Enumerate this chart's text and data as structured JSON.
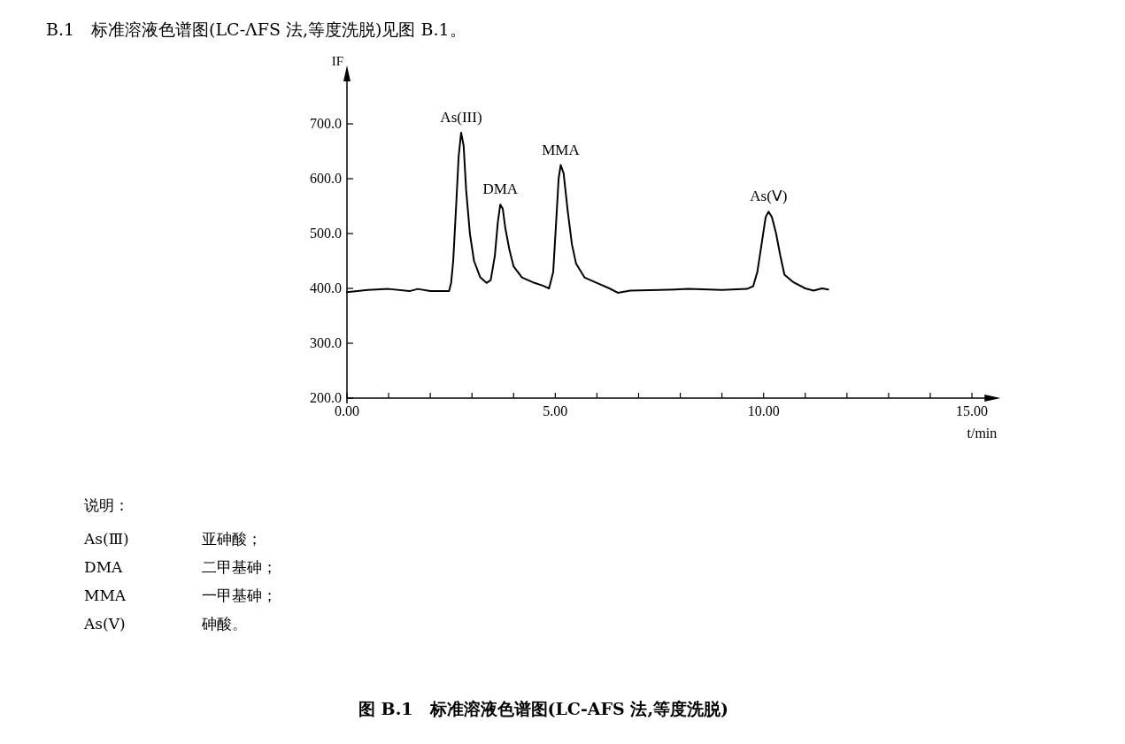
{
  "chart_data": {
    "type": "line",
    "subtitle": "B.1　标准溶液色谱图(LC-ΛFS 法,等度洗脱)见图 B.1。",
    "title": "图 B.1　标准溶液色谱图(LC-AFS 法,等度洗脱)",
    "xlabel": "t/min",
    "ylabel": "IF",
    "xlim": [
      0,
      15.6
    ],
    "ylim": [
      200,
      800
    ],
    "xticks": [
      {
        "value": 0,
        "label": "0.00"
      },
      {
        "value": 1,
        "label": null
      },
      {
        "value": 2,
        "label": null
      },
      {
        "value": 3,
        "label": null
      },
      {
        "value": 4,
        "label": null
      },
      {
        "value": 5,
        "label": "5.00"
      },
      {
        "value": 6,
        "label": null
      },
      {
        "value": 7,
        "label": null
      },
      {
        "value": 8,
        "label": null
      },
      {
        "value": 9,
        "label": null
      },
      {
        "value": 10,
        "label": "10.00"
      },
      {
        "value": 11,
        "label": null
      },
      {
        "value": 12,
        "label": null
      },
      {
        "value": 13,
        "label": null
      },
      {
        "value": 14,
        "label": null
      },
      {
        "value": 15,
        "label": "15.00"
      }
    ],
    "yticks": [
      {
        "value": 200,
        "label": "200.0"
      },
      {
        "value": 300,
        "label": "300.0"
      },
      {
        "value": 400,
        "label": "400.0"
      },
      {
        "value": 500,
        "label": "500.0"
      },
      {
        "value": 600,
        "label": "600.0"
      },
      {
        "value": 700,
        "label": "700.0"
      }
    ],
    "grid": false,
    "series": [
      {
        "color": "#000000",
        "x": [
          0,
          0.5,
          1.0,
          1.5,
          1.7,
          2.0,
          2.45,
          2.5,
          2.55,
          2.62,
          2.68,
          2.74,
          2.8,
          2.86,
          2.95,
          3.05,
          3.2,
          3.35,
          3.45,
          3.55,
          3.62,
          3.68,
          3.74,
          3.8,
          3.9,
          4.0,
          4.2,
          4.5,
          4.7,
          4.85,
          4.95,
          5.02,
          5.08,
          5.13,
          5.2,
          5.3,
          5.4,
          5.5,
          5.7,
          6.0,
          6.3,
          6.5,
          6.8,
          7.5,
          8.2,
          9.0,
          9.6,
          9.75,
          9.85,
          9.95,
          10.05,
          10.12,
          10.2,
          10.3,
          10.4,
          10.5,
          10.7,
          11.0,
          11.2,
          11.4,
          11.55
        ],
        "values": [
          393,
          397,
          399,
          395,
          399,
          395,
          395,
          410,
          450,
          550,
          640,
          684,
          660,
          580,
          500,
          450,
          420,
          410,
          415,
          460,
          520,
          553,
          545,
          510,
          470,
          440,
          420,
          410,
          405,
          400,
          430,
          520,
          600,
          625,
          610,
          540,
          480,
          445,
          420,
          410,
          400,
          392,
          396,
          397,
          399,
          397,
          399,
          404,
          430,
          480,
          530,
          540,
          530,
          500,
          460,
          425,
          412,
          400,
          396,
          400,
          398
        ]
      }
    ],
    "annotations": [
      {
        "text": "As(III)",
        "x": 2.74,
        "y": 684
      },
      {
        "text": "DMA",
        "x": 3.68,
        "y": 553
      },
      {
        "text": "MMA",
        "x": 5.13,
        "y": 625
      },
      {
        "text": "As(Ⅴ)",
        "x": 10.12,
        "y": 540
      },
      "说明：",
      "As(Ⅲ)",
      "亚砷酸；",
      "DMA",
      "二甲基砷；",
      "MMA",
      "一甲基砷；",
      "As(Ⅴ)",
      "砷酸。"
    ]
  }
}
